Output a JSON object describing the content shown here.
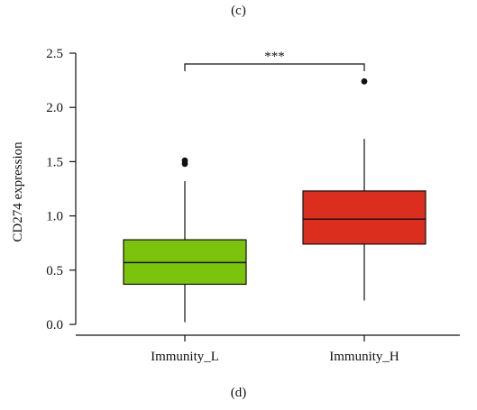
{
  "panel_labels": {
    "top": "(c)",
    "bottom": "(d)"
  },
  "chart_data": {
    "type": "box",
    "ylabel": "CD274 expression",
    "xlabel": "",
    "ylim": [
      0.0,
      2.5
    ],
    "yticks": [
      "0.0",
      "0.5",
      "1.0",
      "1.5",
      "2.0",
      "2.5"
    ],
    "categories": [
      "Immunity_L",
      "Immunity_H"
    ],
    "boxes": [
      {
        "category": "Immunity_L",
        "color": "#7cc30c",
        "min": 0.02,
        "q1": 0.37,
        "median": 0.57,
        "q3": 0.78,
        "max": 1.32,
        "outliers": [
          1.48,
          1.51
        ]
      },
      {
        "category": "Immunity_H",
        "color": "#dc2e1e",
        "min": 0.22,
        "q1": 0.74,
        "median": 0.97,
        "q3": 1.23,
        "max": 1.71,
        "outliers": [
          2.24
        ]
      }
    ],
    "significance": {
      "label": "***",
      "between": [
        "Immunity_L",
        "Immunity_H"
      ]
    },
    "grid": false,
    "legend": "none"
  }
}
